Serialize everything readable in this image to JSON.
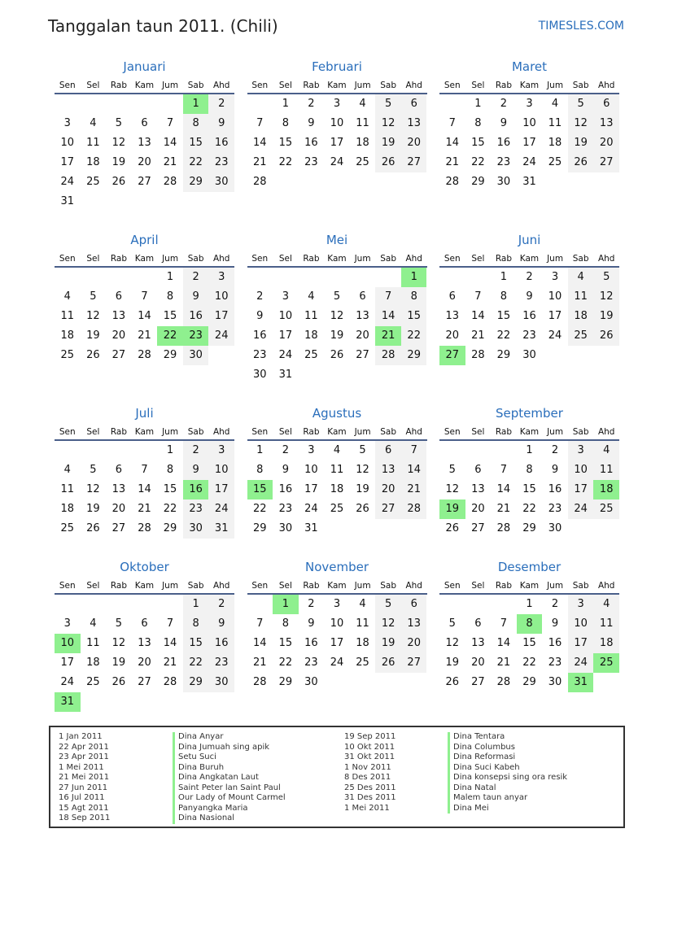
{
  "header": {
    "title": "Tanggalan taun 2011. (Chili)",
    "brand": "TIMESLES.COM"
  },
  "weekdays": [
    "Sen",
    "Sel",
    "Rab",
    "Kam",
    "Jum",
    "Sab",
    "Ahd"
  ],
  "colors": {
    "accent": "#2a6ebb",
    "holiday": "#8ff08f",
    "weekend": "#f2f2f2"
  },
  "months": [
    {
      "name": "Januari",
      "offset": 5,
      "days": 31,
      "holidays": [
        1
      ]
    },
    {
      "name": "Februari",
      "offset": 1,
      "days": 28,
      "holidays": []
    },
    {
      "name": "Maret",
      "offset": 1,
      "days": 31,
      "holidays": []
    },
    {
      "name": "April",
      "offset": 4,
      "days": 30,
      "holidays": [
        22,
        23
      ]
    },
    {
      "name": "Mei",
      "offset": 6,
      "days": 31,
      "holidays": [
        1,
        21
      ]
    },
    {
      "name": "Juni",
      "offset": 2,
      "days": 30,
      "holidays": [
        27
      ]
    },
    {
      "name": "Juli",
      "offset": 4,
      "days": 31,
      "holidays": [
        16
      ]
    },
    {
      "name": "Agustus",
      "offset": 0,
      "days": 31,
      "holidays": [
        15
      ]
    },
    {
      "name": "September",
      "offset": 3,
      "days": 30,
      "holidays": [
        18,
        19
      ]
    },
    {
      "name": "Oktober",
      "offset": 5,
      "days": 31,
      "holidays": [
        10,
        31
      ]
    },
    {
      "name": "November",
      "offset": 1,
      "days": 30,
      "holidays": [
        1
      ]
    },
    {
      "name": "Desember",
      "offset": 3,
      "days": 31,
      "holidays": [
        8,
        25,
        31
      ]
    }
  ],
  "legend": [
    [
      {
        "date": "1 Jan 2011",
        "name": "Dina Anyar"
      },
      {
        "date": "22 Apr 2011",
        "name": "Dina Jumuah sing apik"
      },
      {
        "date": "23 Apr 2011",
        "name": "Setu Suci"
      },
      {
        "date": "1 Mei 2011",
        "name": "Dina Buruh"
      },
      {
        "date": "21 Mei 2011",
        "name": "Dina Angkatan Laut"
      },
      {
        "date": "27 Jun 2011",
        "name": "Saint Peter lan Saint Paul"
      },
      {
        "date": "16 Jul 2011",
        "name": "Our Lady of Mount Carmel"
      },
      {
        "date": "15 Agt 2011",
        "name": "Panyangka Maria"
      },
      {
        "date": "18 Sep 2011",
        "name": "Dina Nasional"
      }
    ],
    [
      {
        "date": "19 Sep 2011",
        "name": "Dina Tentara"
      },
      {
        "date": "10 Okt 2011",
        "name": "Dina Columbus"
      },
      {
        "date": "31 Okt 2011",
        "name": "Dina Reformasi"
      },
      {
        "date": "1 Nov 2011",
        "name": "Dina Suci Kabeh"
      },
      {
        "date": "8 Des 2011",
        "name": "Dina konsepsi sing ora resik"
      },
      {
        "date": "25 Des 2011",
        "name": "Dina Natal"
      },
      {
        "date": "31 Des 2011",
        "name": "Malem taun anyar"
      },
      {
        "date": "1 Mei 2011",
        "name": "Dina Mei"
      }
    ]
  ]
}
